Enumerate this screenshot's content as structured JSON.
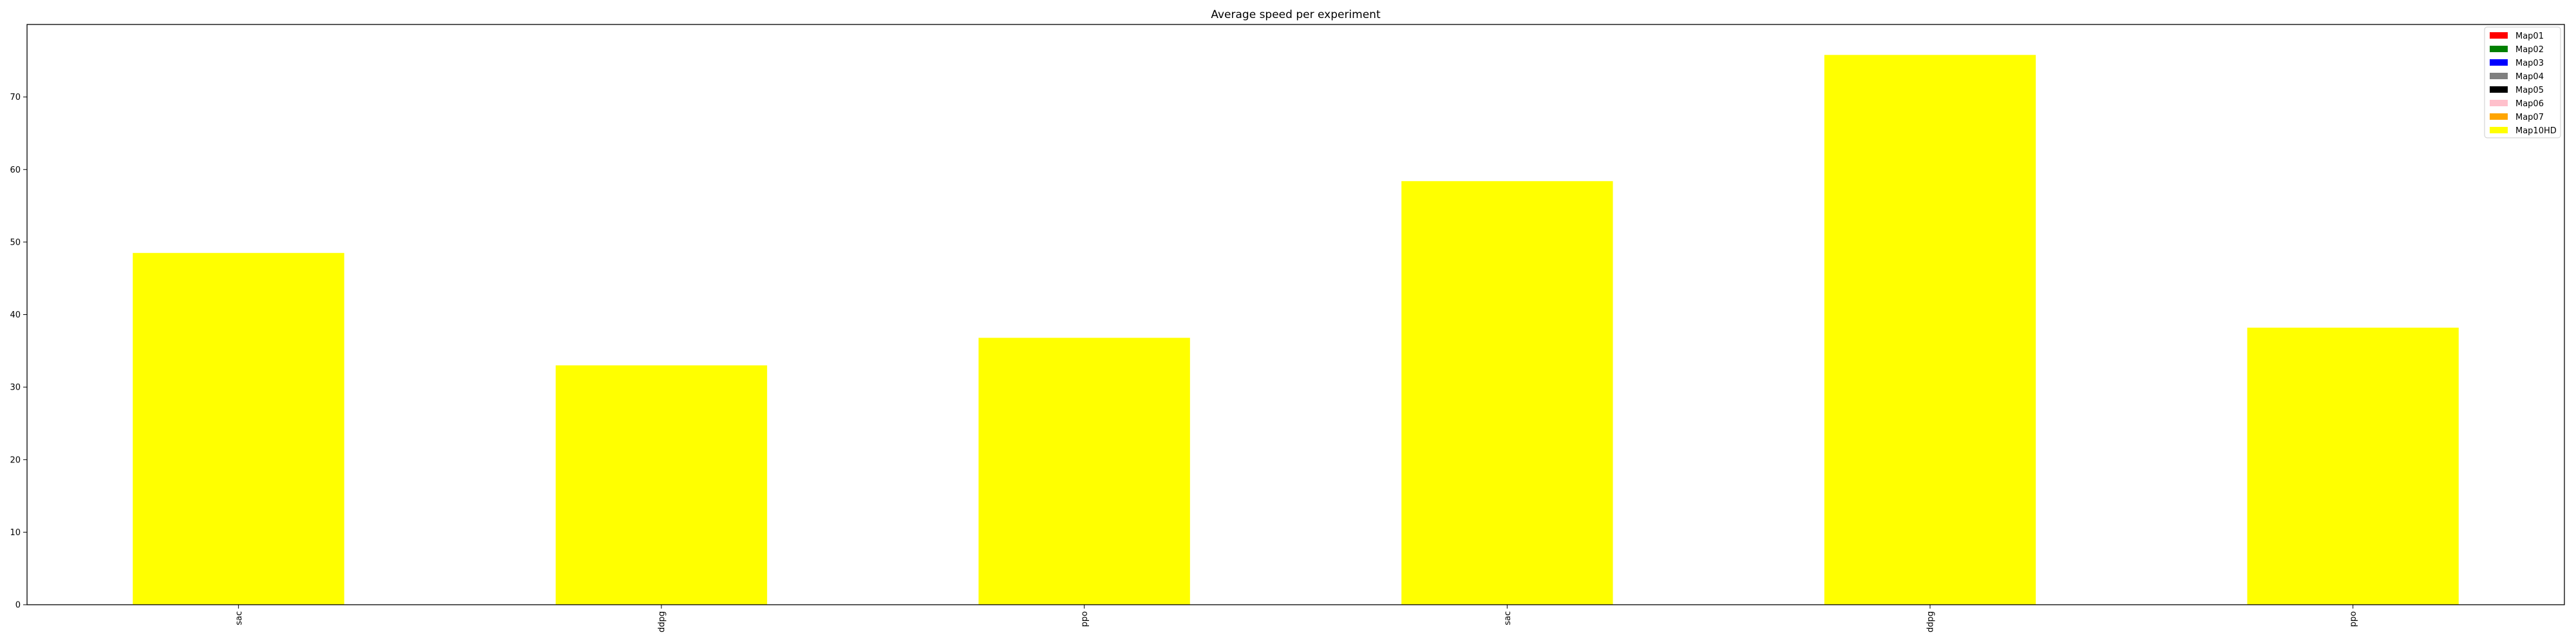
{
  "chart_data": {
    "type": "bar",
    "title": "Average speed per experiment",
    "xlabel": "",
    "ylabel": "",
    "categories": [
      "sac",
      "ddpg",
      "ppo",
      "sac",
      "ddpg",
      "ppo"
    ],
    "series": [
      {
        "name": "Map01",
        "color": "#ff0000",
        "values": [
          0,
          0,
          0,
          0,
          0,
          0
        ]
      },
      {
        "name": "Map02",
        "color": "#008000",
        "values": [
          0,
          0,
          0,
          0,
          0,
          0
        ]
      },
      {
        "name": "Map03",
        "color": "#0000ff",
        "values": [
          0,
          0,
          0,
          0,
          0,
          0
        ]
      },
      {
        "name": "Map04",
        "color": "#808080",
        "values": [
          0,
          0,
          0,
          0,
          0,
          0
        ]
      },
      {
        "name": "Map05",
        "color": "#000000",
        "values": [
          0,
          0,
          0,
          0,
          0,
          0
        ]
      },
      {
        "name": "Map06",
        "color": "#ffc0cb",
        "values": [
          0,
          0,
          0,
          0,
          0,
          0
        ]
      },
      {
        "name": "Map07",
        "color": "#ffa500",
        "values": [
          0,
          0,
          0,
          0,
          0,
          0
        ]
      },
      {
        "name": "Map10HD",
        "color": "#ffff00",
        "values": [
          48.5,
          33.0,
          36.8,
          58.4,
          75.8,
          38.2
        ]
      }
    ],
    "ylim": [
      0,
      80
    ],
    "yticks": [
      0,
      10,
      20,
      30,
      40,
      50,
      60,
      70
    ],
    "grid": false,
    "legend_position": "top-right",
    "bar_color": "#ffff00"
  }
}
